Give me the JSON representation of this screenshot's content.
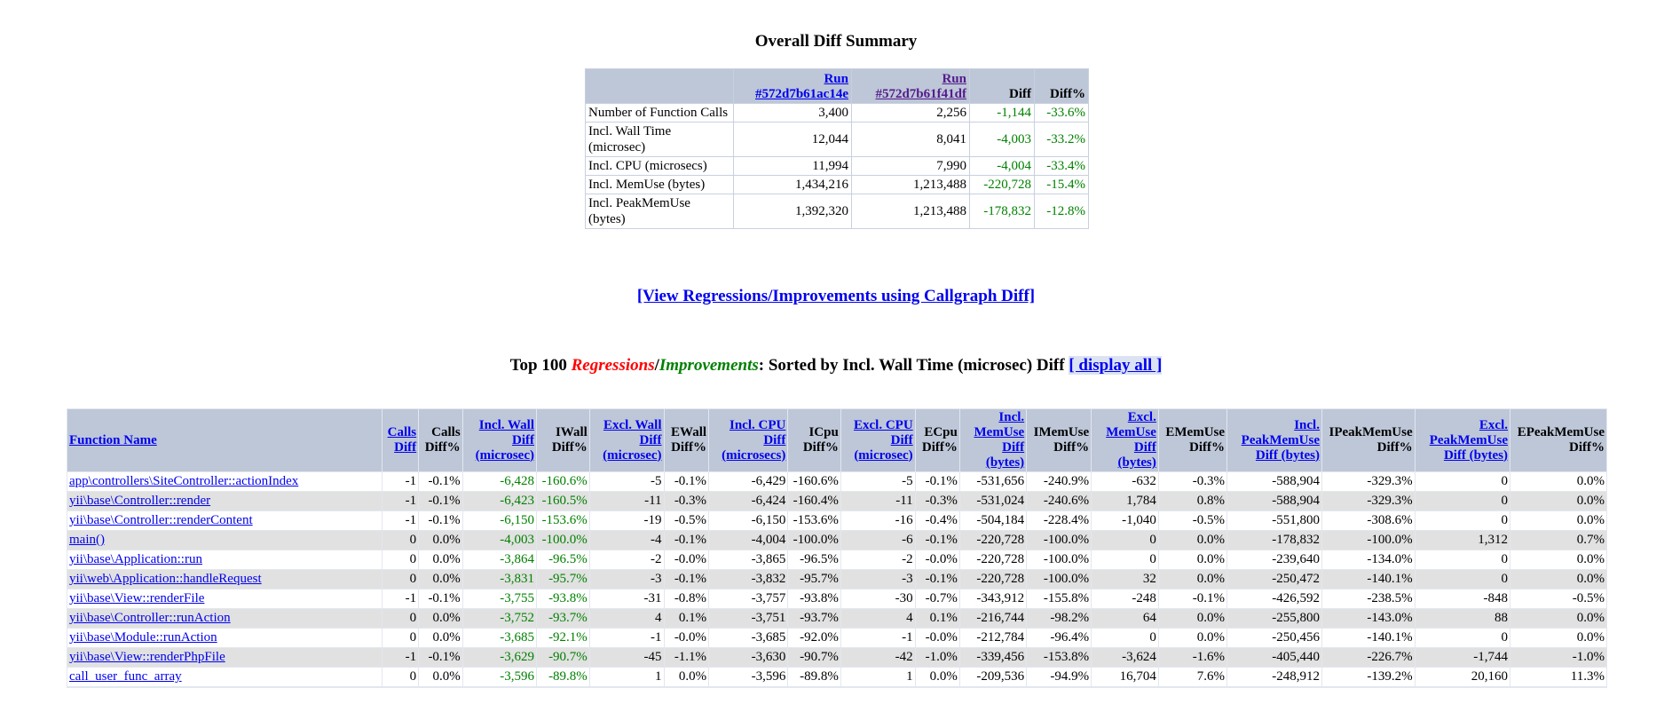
{
  "summary": {
    "title": "Overall Diff Summary",
    "headers": {
      "run1": "Run #572d7b61ac14e",
      "run2": "Run #572d7b61f41df",
      "diff": "Diff",
      "diff_pct": "Diff%"
    },
    "rows": [
      {
        "label": "Number of Function Calls",
        "run1": "3,400",
        "run2": "2,256",
        "diff": "-1,144",
        "diff_pct": "-33.6%"
      },
      {
        "label": "Incl. Wall Time (microsec)",
        "run1": "12,044",
        "run2": "8,041",
        "diff": "-4,003",
        "diff_pct": "-33.2%"
      },
      {
        "label": "Incl. CPU (microsecs)",
        "run1": "11,994",
        "run2": "7,990",
        "diff": "-4,004",
        "diff_pct": "-33.4%"
      },
      {
        "label": "Incl. MemUse (bytes)",
        "run1": "1,434,216",
        "run2": "1,213,488",
        "diff": "-220,728",
        "diff_pct": "-15.4%"
      },
      {
        "label": "Incl. PeakMemUse (bytes)",
        "run1": "1,392,320",
        "run2": "1,213,488",
        "diff": "-178,832",
        "diff_pct": "-12.8%"
      }
    ]
  },
  "callgraph_link": "[View Regressions/Improvements using Callgraph Diff]",
  "top": {
    "prefix": "Top 100 ",
    "regressions": "Regressions",
    "slash": "/",
    "improvements": "Improvements",
    "suffix": ": Sorted by Incl. Wall Time (microsec) Diff ",
    "display_all": "[ display all ]"
  },
  "table": {
    "headers": [
      {
        "label": "Function Name",
        "link": true
      },
      {
        "label": "Calls Diff",
        "link": true
      },
      {
        "label": "Calls Diff%",
        "link": false
      },
      {
        "label": "Incl. Wall Diff (microsec)",
        "link": true
      },
      {
        "label": "IWall Diff%",
        "link": false
      },
      {
        "label": "Excl. Wall Diff (microsec)",
        "link": true
      },
      {
        "label": "EWall Diff%",
        "link": false
      },
      {
        "label": "Incl. CPU Diff (microsecs)",
        "link": true
      },
      {
        "label": "ICpu Diff%",
        "link": false
      },
      {
        "label": "Excl. CPU Diff (microsec)",
        "link": true
      },
      {
        "label": "ECpu Diff%",
        "link": false
      },
      {
        "label": "Incl. MemUse Diff (bytes)",
        "link": true
      },
      {
        "label": "IMemUse Diff%",
        "link": false
      },
      {
        "label": "Excl. MemUse Diff (bytes)",
        "link": true
      },
      {
        "label": "EMemUse Diff%",
        "link": false
      },
      {
        "label": "Incl. PeakMemUse Diff (bytes)",
        "link": true
      },
      {
        "label": "IPeakMemUse Diff%",
        "link": false
      },
      {
        "label": "Excl. PeakMemUse Diff (bytes)",
        "link": true
      },
      {
        "label": "EPeakMemUse Diff%",
        "link": false
      }
    ],
    "rows": [
      [
        "app\\controllers\\SiteController::actionIndex",
        "-1",
        "-0.1%",
        "-6,428",
        "-160.6%",
        "-5",
        "-0.1%",
        "-6,429",
        "-160.6%",
        "-5",
        "-0.1%",
        "-531,656",
        "-240.9%",
        "-632",
        "-0.3%",
        "-588,904",
        "-329.3%",
        "0",
        "0.0%"
      ],
      [
        "yii\\base\\Controller::render",
        "-1",
        "-0.1%",
        "-6,423",
        "-160.5%",
        "-11",
        "-0.3%",
        "-6,424",
        "-160.4%",
        "-11",
        "-0.3%",
        "-531,024",
        "-240.6%",
        "1,784",
        "0.8%",
        "-588,904",
        "-329.3%",
        "0",
        "0.0%"
      ],
      [
        "yii\\base\\Controller::renderContent",
        "-1",
        "-0.1%",
        "-6,150",
        "-153.6%",
        "-19",
        "-0.5%",
        "-6,150",
        "-153.6%",
        "-16",
        "-0.4%",
        "-504,184",
        "-228.4%",
        "-1,040",
        "-0.5%",
        "-551,800",
        "-308.6%",
        "0",
        "0.0%"
      ],
      [
        "main()",
        "0",
        "0.0%",
        "-4,003",
        "-100.0%",
        "-4",
        "-0.1%",
        "-4,004",
        "-100.0%",
        "-6",
        "-0.1%",
        "-220,728",
        "-100.0%",
        "0",
        "0.0%",
        "-178,832",
        "-100.0%",
        "1,312",
        "0.7%"
      ],
      [
        "yii\\base\\Application::run",
        "0",
        "0.0%",
        "-3,864",
        "-96.5%",
        "-2",
        "-0.0%",
        "-3,865",
        "-96.5%",
        "-2",
        "-0.0%",
        "-220,728",
        "-100.0%",
        "0",
        "0.0%",
        "-239,640",
        "-134.0%",
        "0",
        "0.0%"
      ],
      [
        "yii\\web\\Application::handleRequest",
        "0",
        "0.0%",
        "-3,831",
        "-95.7%",
        "-3",
        "-0.1%",
        "-3,832",
        "-95.7%",
        "-3",
        "-0.1%",
        "-220,728",
        "-100.0%",
        "32",
        "0.0%",
        "-250,472",
        "-140.1%",
        "0",
        "0.0%"
      ],
      [
        "yii\\base\\View::renderFile",
        "-1",
        "-0.1%",
        "-3,755",
        "-93.8%",
        "-31",
        "-0.8%",
        "-3,757",
        "-93.8%",
        "-30",
        "-0.7%",
        "-343,912",
        "-155.8%",
        "-248",
        "-0.1%",
        "-426,592",
        "-238.5%",
        "-848",
        "-0.5%"
      ],
      [
        "yii\\base\\Controller::runAction",
        "0",
        "0.0%",
        "-3,752",
        "-93.7%",
        "4",
        "0.1%",
        "-3,751",
        "-93.7%",
        "4",
        "0.1%",
        "-216,744",
        "-98.2%",
        "64",
        "0.0%",
        "-255,800",
        "-143.0%",
        "88",
        "0.0%"
      ],
      [
        "yii\\base\\Module::runAction",
        "0",
        "0.0%",
        "-3,685",
        "-92.1%",
        "-1",
        "-0.0%",
        "-3,685",
        "-92.0%",
        "-1",
        "-0.0%",
        "-212,784",
        "-96.4%",
        "0",
        "0.0%",
        "-250,456",
        "-140.1%",
        "0",
        "0.0%"
      ],
      [
        "yii\\base\\View::renderPhpFile",
        "-1",
        "-0.1%",
        "-3,629",
        "-90.7%",
        "-45",
        "-1.1%",
        "-3,630",
        "-90.7%",
        "-42",
        "-1.0%",
        "-339,456",
        "-153.8%",
        "-3,624",
        "-1.6%",
        "-405,440",
        "-226.7%",
        "-1,744",
        "-1.0%"
      ],
      [
        "call_user_func_array",
        "0",
        "0.0%",
        "-3,596",
        "-89.8%",
        "1",
        "0.0%",
        "-3,596",
        "-89.8%",
        "1",
        "0.0%",
        "-209,536",
        "-94.9%",
        "16,704",
        "7.6%",
        "-248,912",
        "-139.2%",
        "20,160",
        "11.3%"
      ],
      [
        "",
        "",
        "",
        "",
        "",
        "",
        "",
        "",
        "",
        "",
        "",
        "",
        "",
        "",
        "",
        "",
        "",
        "",
        ""
      ]
    ],
    "green_columns": [
      3,
      4
    ]
  }
}
